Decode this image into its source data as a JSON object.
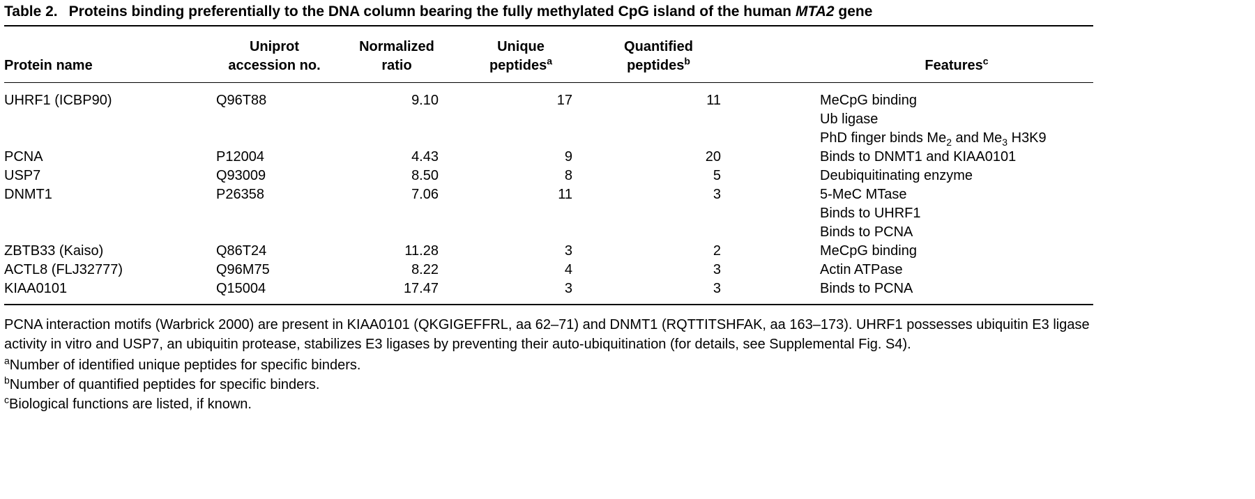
{
  "title": {
    "label": "Table 2.",
    "text_before_gene": "Proteins binding preferentially to the DNA column bearing the fully methylated CpG island of the human ",
    "gene": "MTA2",
    "text_after_gene": " gene"
  },
  "table": {
    "headers": {
      "protein": "Protein name",
      "uniprot_line1": "Uniprot",
      "uniprot_line2": "accession no.",
      "normalized_line1": "Normalized",
      "normalized_line2": "ratio",
      "unique_line1": "Unique",
      "unique_line2": "peptides",
      "unique_sup": "a",
      "quantified_line1": "Quantified",
      "quantified_line2": "peptides",
      "quantified_sup": "b",
      "features": "Features",
      "features_sup": "c"
    },
    "rows": [
      {
        "protein": "UHRF1 (ICBP90)",
        "uniprot": "Q96T88",
        "ratio": "9.10",
        "unique": "17",
        "quantified": "11",
        "features": [
          "MeCpG binding",
          "Ub ligase"
        ],
        "features_special": {
          "prefix": "PhD finger binds Me",
          "sub1": "2",
          "mid": " and Me",
          "sub2": "3",
          "suffix": " H3K9"
        }
      },
      {
        "protein": "PCNA",
        "uniprot": "P12004",
        "ratio": "4.43",
        "unique": "9",
        "quantified": "20",
        "features": [
          "Binds to DNMT1 and KIAA0101"
        ]
      },
      {
        "protein": "USP7",
        "uniprot": "Q93009",
        "ratio": "8.50",
        "unique": "8",
        "quantified": "5",
        "features": [
          "Deubiquitinating enzyme"
        ]
      },
      {
        "protein": "DNMT1",
        "uniprot": "P26358",
        "ratio": "7.06",
        "unique": "11",
        "quantified": "3",
        "features": [
          "5-MeC MTase",
          "Binds to UHRF1",
          "Binds to PCNA"
        ]
      },
      {
        "protein": "ZBTB33 (Kaiso)",
        "uniprot": "Q86T24",
        "ratio": "11.28",
        "unique": "3",
        "quantified": "2",
        "features": [
          "MeCpG binding"
        ]
      },
      {
        "protein": "ACTL8 (FLJ32777)",
        "uniprot": "Q96M75",
        "ratio": "8.22",
        "unique": "4",
        "quantified": "3",
        "features": [
          "Actin ATPase"
        ]
      },
      {
        "protein": "KIAA0101",
        "uniprot": "Q15004",
        "ratio": "17.47",
        "unique": "3",
        "quantified": "3",
        "features": [
          "Binds to PCNA"
        ]
      }
    ]
  },
  "footnotes": {
    "paragraph": "PCNA interaction motifs (Warbrick 2000) are present in KIAA0101 (QKGIGEFFRL, aa 62–71) and DNMT1 (RQTTITSHFAK, aa 163–173). UHRF1 possesses ubiquitin E3 ligase activity in vitro and USP7, an ubiquitin protease, stabilizes E3 ligases by preventing their auto-ubiquitination (for details, see Supplemental Fig. S4).",
    "a": {
      "marker": "a",
      "text": "Number of identified unique peptides for specific binders."
    },
    "b": {
      "marker": "b",
      "text": "Number of quantified peptides for specific binders."
    },
    "c": {
      "marker": "c",
      "text": "Biological functions are listed, if known."
    }
  }
}
